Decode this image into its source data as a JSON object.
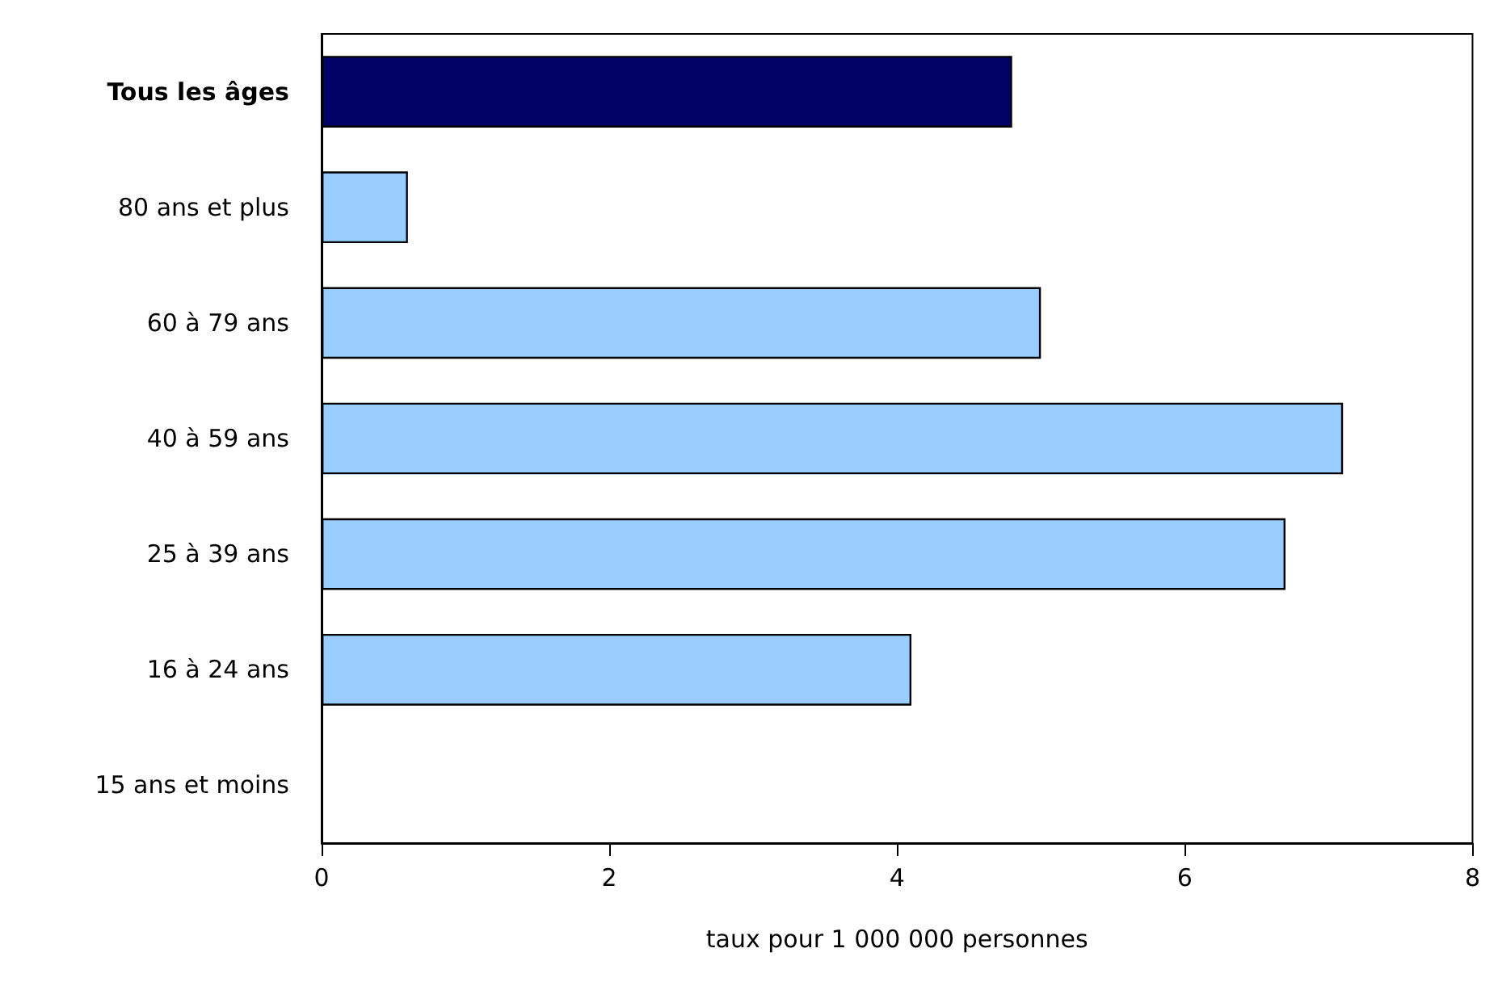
{
  "chart_data": {
    "type": "bar",
    "orientation": "horizontal",
    "xlabel": "taux pour 1 000 000 personnes",
    "categories": [
      "Tous les âges",
      "80 ans et plus",
      "60 à 79 ans",
      "40 à 59 ans",
      "25 à 39 ans",
      "16 à 24 ans",
      "15 ans et moins"
    ],
    "values": [
      4.8,
      0.6,
      5.0,
      7.1,
      6.7,
      4.1,
      0
    ],
    "colors": [
      "#000066",
      "#99ccff",
      "#99ccff",
      "#99ccff",
      "#99ccff",
      "#99ccff",
      "#99ccff"
    ],
    "xlim": [
      0,
      8
    ],
    "xticks": [
      0,
      2,
      4,
      6,
      8
    ],
    "grid": false
  }
}
